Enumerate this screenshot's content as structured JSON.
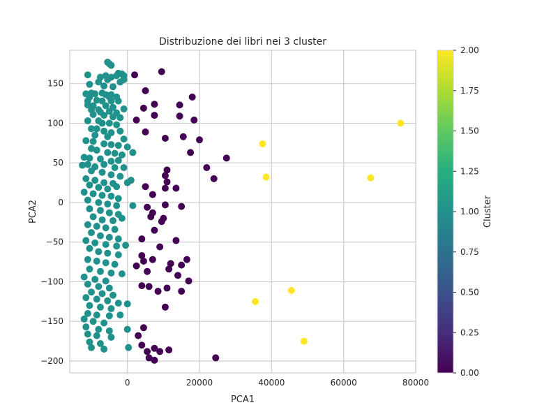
{
  "chart_data": {
    "type": "scatter",
    "title": "Distribuzione dei libri nei 3 cluster",
    "xlabel": "PCA1",
    "ylabel": "PCA2",
    "xlim": [
      -16000,
      80000
    ],
    "ylim": [
      -215,
      192
    ],
    "xticks": [
      0,
      20000,
      40000,
      60000,
      80000
    ],
    "yticks": [
      -200,
      -150,
      -100,
      -50,
      0,
      50,
      100,
      150
    ],
    "grid": true,
    "colormap": "viridis",
    "colorbar": {
      "label": "Cluster",
      "range": [
        0,
        2
      ],
      "ticks": [
        "0.00",
        "0.25",
        "0.50",
        "0.75",
        "1.00",
        "1.25",
        "1.50",
        "1.75",
        "2.00"
      ]
    },
    "colors": {
      "cluster_0": "#440154",
      "cluster_1": "#21918c",
      "cluster_2": "#fde725"
    },
    "series": [
      {
        "cluster": 1,
        "points": [
          [
            -5500,
            177
          ],
          [
            -5000,
            175
          ],
          [
            -4500,
            173
          ],
          [
            -2500,
            163
          ],
          [
            -1500,
            162
          ],
          [
            -3000,
            160
          ],
          [
            -6000,
            160
          ],
          [
            -7500,
            158
          ],
          [
            -11000,
            161
          ],
          [
            -4500,
            158
          ],
          [
            -1000,
            160
          ],
          [
            -5500,
            155
          ],
          [
            -8000,
            152
          ],
          [
            -2000,
            152
          ],
          [
            -1000,
            155
          ],
          [
            -10500,
            149
          ],
          [
            -6500,
            147
          ],
          [
            -4000,
            146
          ],
          [
            -11500,
            137
          ],
          [
            -10000,
            138
          ],
          [
            -9000,
            137
          ],
          [
            -7000,
            138
          ],
          [
            -6000,
            136
          ],
          [
            -4500,
            136
          ],
          [
            -3000,
            133
          ],
          [
            -10500,
            133
          ],
          [
            -5000,
            133
          ],
          [
            -11000,
            128
          ],
          [
            -8500,
            129
          ],
          [
            -7000,
            128
          ],
          [
            -4500,
            128
          ],
          [
            -2500,
            128
          ],
          [
            -11000,
            123
          ],
          [
            -9500,
            122
          ],
          [
            -6000,
            122
          ],
          [
            -4000,
            120
          ],
          [
            -10000,
            117
          ],
          [
            -8000,
            117
          ],
          [
            -7500,
            114
          ],
          [
            -5000,
            115
          ],
          [
            -3000,
            113
          ],
          [
            -1000,
            118
          ],
          [
            -9500,
            111
          ],
          [
            -6500,
            110
          ],
          [
            -4000,
            108
          ],
          [
            -2000,
            107
          ],
          [
            -11000,
            103
          ],
          [
            -8000,
            103
          ],
          [
            -7000,
            100
          ],
          [
            -5000,
            100
          ],
          [
            -3000,
            98
          ],
          [
            -10000,
            93
          ],
          [
            -8500,
            93
          ],
          [
            -6500,
            90
          ],
          [
            -4500,
            88
          ],
          [
            -2000,
            90
          ],
          [
            -9000,
            85
          ],
          [
            -5500,
            83
          ],
          [
            -1000,
            80
          ],
          [
            -11500,
            78
          ],
          [
            -9500,
            77
          ],
          [
            -6500,
            74
          ],
          [
            -4500,
            73
          ],
          [
            -2500,
            72
          ],
          [
            0,
            70
          ],
          [
            -10000,
            68
          ],
          [
            -8500,
            66
          ],
          [
            -5500,
            63
          ],
          [
            -3500,
            62
          ],
          [
            -1500,
            60
          ],
          [
            1500,
            63
          ],
          [
            -12000,
            57
          ],
          [
            -10500,
            56
          ],
          [
            -7500,
            55
          ],
          [
            -4500,
            52
          ],
          [
            -2500,
            53
          ],
          [
            -11000,
            48
          ],
          [
            -9000,
            45
          ],
          [
            -6500,
            48
          ],
          [
            -3500,
            44
          ],
          [
            -1000,
            44
          ],
          [
            -12500,
            47
          ],
          [
            -10000,
            40
          ],
          [
            -7000,
            38
          ],
          [
            -4500,
            35
          ],
          [
            -2000,
            33
          ],
          [
            -11500,
            30
          ],
          [
            -9000,
            28
          ],
          [
            -6500,
            25
          ],
          [
            -4000,
            24
          ],
          [
            0,
            25
          ],
          [
            -10500,
            22
          ],
          [
            -8000,
            19
          ],
          [
            -5500,
            17
          ],
          [
            -3000,
            20
          ],
          [
            1000,
            28
          ],
          [
            -12000,
            13
          ],
          [
            -9500,
            11
          ],
          [
            -7000,
            9
          ],
          [
            -4500,
            8
          ],
          [
            -2500,
            5
          ],
          [
            -11000,
            3
          ],
          [
            -8000,
            0
          ],
          [
            -5500,
            -2
          ],
          [
            -3000,
            -4
          ],
          [
            1500,
            -4
          ],
          [
            -10500,
            -8
          ],
          [
            -7500,
            -10
          ],
          [
            -5000,
            -13
          ],
          [
            -2500,
            -15
          ],
          [
            -9500,
            -18
          ],
          [
            -7000,
            -22
          ],
          [
            -4000,
            -23
          ],
          [
            -1500,
            -20
          ],
          [
            -11000,
            -28
          ],
          [
            -8500,
            -30
          ],
          [
            -6000,
            -32
          ],
          [
            -3500,
            -34
          ],
          [
            -10000,
            -38
          ],
          [
            -7500,
            -42
          ],
          [
            -5000,
            -44
          ],
          [
            -2500,
            -46
          ],
          [
            -11500,
            -48
          ],
          [
            -9000,
            -51
          ],
          [
            -6000,
            -53
          ],
          [
            -3000,
            -55
          ],
          [
            -500,
            -54
          ],
          [
            -10500,
            -58
          ],
          [
            -8000,
            -62
          ],
          [
            -5500,
            -64
          ],
          [
            -2500,
            -66
          ],
          [
            -11000,
            -72
          ],
          [
            -8500,
            -74
          ],
          [
            -6000,
            -76
          ],
          [
            -3500,
            -78
          ],
          [
            -10500,
            -84
          ],
          [
            -7500,
            -87
          ],
          [
            -4500,
            -89
          ],
          [
            -1500,
            -90
          ],
          [
            -12000,
            -94
          ],
          [
            -9000,
            -97
          ],
          [
            -6000,
            -99
          ],
          [
            -11000,
            -103
          ],
          [
            -8000,
            -106
          ],
          [
            -5000,
            -108
          ],
          [
            -10000,
            -113
          ],
          [
            -7000,
            -115
          ],
          [
            -4000,
            -117
          ],
          [
            -11500,
            -120
          ],
          [
            -8500,
            -122
          ],
          [
            -5500,
            -124
          ],
          [
            -2500,
            -127
          ],
          [
            -10500,
            -130
          ],
          [
            -7500,
            -132
          ],
          [
            -4500,
            -134
          ],
          [
            0,
            -128
          ],
          [
            -11000,
            -140
          ],
          [
            -8500,
            -142
          ],
          [
            -5000,
            -143
          ],
          [
            -2000,
            -142
          ],
          [
            -12000,
            -147
          ],
          [
            -9500,
            -150
          ],
          [
            -6500,
            -152
          ],
          [
            -11500,
            -157
          ],
          [
            -8000,
            -160
          ],
          [
            -5000,
            -162
          ],
          [
            -11000,
            -166
          ],
          [
            -8500,
            -168
          ],
          [
            -4500,
            -170
          ],
          [
            0,
            -160
          ],
          [
            -10500,
            -176
          ],
          [
            -7500,
            -178
          ],
          [
            -10000,
            -183
          ],
          [
            -6500,
            -185
          ],
          [
            300,
            -183
          ]
        ]
      },
      {
        "cluster": 0,
        "points": [
          [
            2000,
            161
          ],
          [
            9500,
            165
          ],
          [
            5000,
            141
          ],
          [
            18000,
            133
          ],
          [
            7500,
            124
          ],
          [
            14500,
            123
          ],
          [
            4500,
            119
          ],
          [
            7500,
            110
          ],
          [
            14500,
            109
          ],
          [
            18500,
            104
          ],
          [
            2500,
            104
          ],
          [
            5000,
            89
          ],
          [
            10500,
            81
          ],
          [
            15500,
            83
          ],
          [
            20000,
            79
          ],
          [
            17500,
            63
          ],
          [
            27500,
            56
          ],
          [
            22000,
            44
          ],
          [
            11000,
            41
          ],
          [
            10500,
            34
          ],
          [
            24000,
            30
          ],
          [
            11000,
            26
          ],
          [
            13500,
            18
          ],
          [
            5000,
            20
          ],
          [
            10500,
            18
          ],
          [
            7000,
            10
          ],
          [
            5500,
            -6
          ],
          [
            10500,
            -3
          ],
          [
            15000,
            -5
          ],
          [
            7000,
            -13
          ],
          [
            6500,
            -18
          ],
          [
            10000,
            -20
          ],
          [
            9500,
            -24
          ],
          [
            7500,
            -35
          ],
          [
            13500,
            -48
          ],
          [
            4000,
            -46
          ],
          [
            9000,
            -56
          ],
          [
            4000,
            -67
          ],
          [
            7000,
            -72
          ],
          [
            4500,
            -74
          ],
          [
            12000,
            -77
          ],
          [
            16500,
            -72
          ],
          [
            15000,
            -79
          ],
          [
            11500,
            -84
          ],
          [
            2500,
            -80
          ],
          [
            5500,
            -87
          ],
          [
            14000,
            -92
          ],
          [
            17000,
            -99
          ],
          [
            4000,
            -105
          ],
          [
            6000,
            -106
          ],
          [
            8500,
            -112
          ],
          [
            11000,
            -108
          ],
          [
            15000,
            -112
          ],
          [
            10500,
            -132
          ],
          [
            4500,
            -158
          ],
          [
            3000,
            -168
          ],
          [
            4000,
            -180
          ],
          [
            7500,
            -184
          ],
          [
            5500,
            -188
          ],
          [
            9000,
            -188
          ],
          [
            11500,
            -186
          ],
          [
            6000,
            -196
          ],
          [
            7500,
            -199
          ],
          [
            24500,
            -196
          ]
        ]
      },
      {
        "cluster": 2,
        "points": [
          [
            75800,
            100
          ],
          [
            37500,
            74
          ],
          [
            38500,
            32
          ],
          [
            67500,
            31
          ],
          [
            45500,
            -111
          ],
          [
            35500,
            -125
          ],
          [
            49000,
            -175
          ]
        ]
      }
    ]
  }
}
